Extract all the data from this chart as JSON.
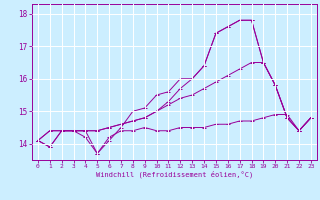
{
  "xlabel": "Windchill (Refroidissement éolien,°C)",
  "ylabel": "",
  "background_color": "#cceeff",
  "grid_color": "#ffffff",
  "line_color": "#990099",
  "xlim": [
    -0.5,
    23.5
  ],
  "ylim": [
    13.5,
    18.3
  ],
  "yticks": [
    14,
    15,
    16,
    17,
    18
  ],
  "xticks": [
    0,
    1,
    2,
    3,
    4,
    5,
    6,
    7,
    8,
    9,
    10,
    11,
    12,
    13,
    14,
    15,
    16,
    17,
    18,
    19,
    20,
    21,
    22,
    23
  ],
  "series": [
    [
      14.1,
      13.9,
      14.4,
      14.4,
      14.4,
      13.7,
      14.1,
      14.5,
      15.0,
      15.1,
      15.5,
      15.6,
      16.0,
      16.0,
      16.4,
      17.4,
      17.6,
      17.8,
      17.8,
      16.5,
      15.8,
      14.8,
      14.4,
      14.8
    ],
    [
      14.1,
      13.9,
      14.4,
      14.4,
      14.2,
      13.7,
      14.2,
      14.4,
      14.4,
      14.5,
      14.4,
      14.4,
      14.5,
      14.5,
      14.5,
      14.6,
      14.6,
      14.7,
      14.7,
      14.8,
      14.9,
      14.9,
      14.4,
      14.8
    ],
    [
      14.1,
      14.4,
      14.4,
      14.4,
      14.4,
      14.4,
      14.5,
      14.6,
      14.7,
      14.8,
      15.0,
      15.2,
      15.4,
      15.5,
      15.7,
      15.9,
      16.1,
      16.3,
      16.5,
      16.5,
      15.8,
      14.8,
      14.4,
      14.8
    ],
    [
      14.1,
      14.4,
      14.4,
      14.4,
      14.4,
      14.4,
      14.5,
      14.6,
      14.7,
      14.8,
      15.0,
      15.3,
      15.7,
      16.0,
      16.4,
      17.4,
      17.6,
      17.8,
      17.8,
      16.5,
      15.8,
      14.8,
      14.4,
      14.8
    ]
  ]
}
